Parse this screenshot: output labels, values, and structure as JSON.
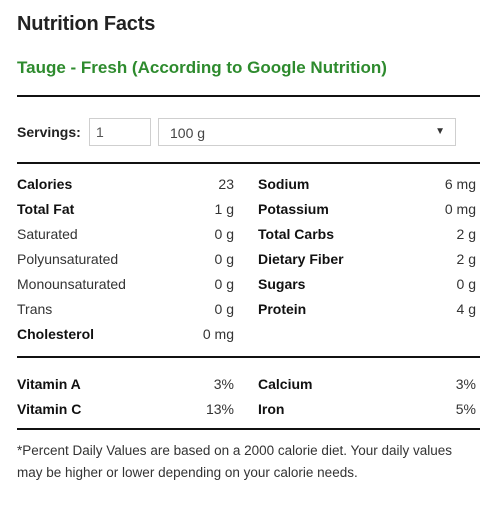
{
  "header": {
    "title": "Nutrition Facts",
    "subtitle": "Tauge - Fresh (According to Google Nutrition)"
  },
  "servings": {
    "label": "Servings:",
    "amount": "1",
    "unit_selected": "100 g"
  },
  "left_col": [
    {
      "label": "Calories",
      "value": "23",
      "bold": true
    },
    {
      "label": "Total Fat",
      "value": "1 g",
      "bold": true
    },
    {
      "label": "Saturated",
      "value": "0 g",
      "bold": false
    },
    {
      "label": "Polyunsaturated",
      "value": "0 g",
      "bold": false
    },
    {
      "label": "Monounsaturated",
      "value": "0 g",
      "bold": false
    },
    {
      "label": "Trans",
      "value": "0 g",
      "bold": false
    },
    {
      "label": "Cholesterol",
      "value": "0 mg",
      "bold": true
    }
  ],
  "right_col": [
    {
      "label": "Sodium",
      "value": "6 mg",
      "bold": true
    },
    {
      "label": "Potassium",
      "value": "0 mg",
      "bold": true
    },
    {
      "label": "Total Carbs",
      "value": "2 g",
      "bold": true
    },
    {
      "label": "Dietary Fiber",
      "value": "2 g",
      "bold": true
    },
    {
      "label": "Sugars",
      "value": "0 g",
      "bold": true
    },
    {
      "label": "Protein",
      "value": "4 g",
      "bold": true
    }
  ],
  "vitamins_left": [
    {
      "label": "Vitamin A",
      "value": "3%"
    },
    {
      "label": "Vitamin C",
      "value": "13%"
    }
  ],
  "vitamins_right": [
    {
      "label": "Calcium",
      "value": "3%"
    },
    {
      "label": "Iron",
      "value": "5%"
    }
  ],
  "footnote": "*Percent Daily Values are based on a 2000 calorie diet. Your daily values may be higher or lower depending on your calorie needs.",
  "colors": {
    "subtitle": "#2e8b2e",
    "rule": "#111111"
  }
}
